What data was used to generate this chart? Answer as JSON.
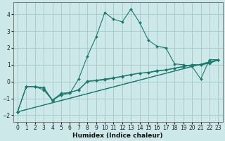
{
  "title": "",
  "xlabel": "Humidex (Indice chaleur)",
  "background_color": "#cce8e8",
  "grid_color": "#aacccc",
  "line_color": "#1a7a6e",
  "xlim": [
    -0.5,
    23.5
  ],
  "ylim": [
    -2.4,
    4.7
  ],
  "xticks": [
    0,
    1,
    2,
    3,
    4,
    5,
    6,
    7,
    8,
    9,
    10,
    11,
    12,
    13,
    14,
    15,
    16,
    17,
    18,
    19,
    20,
    21,
    22,
    23
  ],
  "yticks": [
    -2,
    -1,
    0,
    1,
    2,
    3,
    4
  ],
  "lines": [
    {
      "x": [
        0,
        1,
        2,
        3,
        4,
        5,
        6,
        7,
        8,
        9,
        10,
        11,
        12,
        13,
        14,
        15,
        16,
        17,
        18,
        19,
        20,
        21,
        22,
        23
      ],
      "y": [
        -1.8,
        -0.3,
        -0.3,
        -0.5,
        -1.1,
        -0.8,
        -0.7,
        0.15,
        1.5,
        2.65,
        4.1,
        3.7,
        3.55,
        4.3,
        3.5,
        2.45,
        2.1,
        2.0,
        1.05,
        1.0,
        0.9,
        0.15,
        1.3,
        1.3
      ]
    },
    {
      "x": [
        0,
        23
      ],
      "y": [
        -1.8,
        1.3
      ]
    },
    {
      "x": [
        0,
        23
      ],
      "y": [
        -1.8,
        1.3
      ]
    },
    {
      "x": [
        0,
        1,
        2,
        3,
        4,
        5,
        6,
        7,
        8,
        9,
        10,
        11,
        12,
        13,
        14,
        15,
        16,
        17,
        18,
        19,
        20,
        21,
        22,
        23
      ],
      "y": [
        -1.8,
        -0.3,
        -0.3,
        -0.4,
        -1.15,
        -0.75,
        -0.65,
        -0.5,
        0.0,
        0.05,
        0.1,
        0.2,
        0.3,
        0.4,
        0.5,
        0.55,
        0.65,
        0.7,
        0.8,
        0.9,
        1.0,
        1.0,
        1.1,
        1.3
      ]
    },
    {
      "x": [
        0,
        1,
        2,
        3,
        4,
        5,
        6,
        7,
        8,
        9,
        10,
        11,
        12,
        13,
        14,
        15,
        16,
        17,
        18,
        19,
        20,
        21,
        22,
        23
      ],
      "y": [
        -1.8,
        -0.3,
        -0.3,
        -0.35,
        -1.1,
        -0.7,
        -0.65,
        -0.48,
        0.02,
        0.08,
        0.15,
        0.22,
        0.32,
        0.42,
        0.5,
        0.53,
        0.62,
        0.68,
        0.78,
        0.88,
        0.98,
        1.0,
        1.08,
        1.28
      ]
    }
  ]
}
